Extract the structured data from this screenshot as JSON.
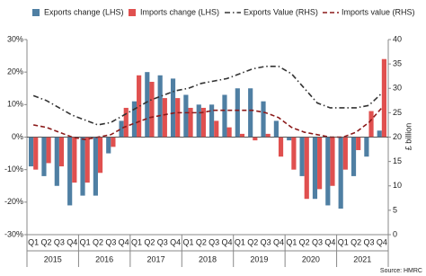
{
  "chart_data": {
    "type": "bar",
    "categories": [
      "Q1",
      "Q2",
      "Q3",
      "Q4",
      "Q1",
      "Q2",
      "Q3",
      "Q4",
      "Q1",
      "Q2",
      "Q3",
      "Q4",
      "Q1",
      "Q2",
      "Q3",
      "Q4",
      "Q1",
      "Q2",
      "Q3",
      "Q4",
      "Q1",
      "Q2",
      "Q3",
      "Q4",
      "Q1",
      "Q2",
      "Q3",
      "Q4"
    ],
    "year_labels": [
      "2015",
      "2016",
      "2017",
      "2018",
      "2019",
      "2020",
      "2021"
    ],
    "series": [
      {
        "name": "Exports change (LHS)",
        "type": "bar",
        "color": "#4f7fa3",
        "values": [
          -9,
          -12,
          -15,
          -21,
          -18,
          -18,
          -5,
          5,
          11,
          20,
          19,
          18,
          13,
          10,
          10,
          13,
          15,
          15,
          11,
          5,
          -1,
          -12,
          -19,
          -21,
          -22,
          -12,
          -6,
          2
        ]
      },
      {
        "name": "Imports change (LHS)",
        "type": "bar",
        "color": "#e0504f",
        "values": [
          -10,
          -8,
          -9,
          -14,
          -14,
          -11,
          -3,
          9,
          19,
          17,
          12,
          12,
          9,
          9,
          5,
          3,
          1,
          -1,
          1,
          -6,
          -10,
          -19,
          -16,
          -15,
          -10,
          -4,
          8,
          24
        ]
      },
      {
        "name": "Exports Value (RHS)",
        "type": "line",
        "axis": "y2",
        "color": "#333333",
        "line_style": "dashdot",
        "values": [
          28.5,
          27.5,
          26,
          24.5,
          23.5,
          22.5,
          23,
          24.5,
          26,
          27.5,
          28.5,
          29.5,
          30,
          31,
          31.5,
          32,
          33,
          34,
          34.5,
          34.5,
          33,
          30,
          27,
          26,
          26,
          26,
          26.5,
          29
        ]
      },
      {
        "name": "Imports value (RHS)",
        "type": "line",
        "axis": "y2",
        "color": "#8b1a1a",
        "line_style": "dashed",
        "values": [
          22.5,
          22,
          21,
          20,
          19.5,
          20,
          20.5,
          22,
          23,
          24,
          24.5,
          25,
          25,
          25,
          25.5,
          25.5,
          25.5,
          25.5,
          25,
          24,
          22,
          21,
          20.5,
          20,
          20,
          21,
          23,
          26
        ]
      }
    ],
    "ylim": [
      -30,
      30
    ],
    "yticks": [
      {
        "value": -30,
        "label": "-30%"
      },
      {
        "value": -20,
        "label": "-20%"
      },
      {
        "value": -10,
        "label": "-10%"
      },
      {
        "value": 0,
        "label": "0%"
      },
      {
        "value": 10,
        "label": "10%"
      },
      {
        "value": 20,
        "label": "20%"
      },
      {
        "value": 30,
        "label": "30%"
      }
    ],
    "y2lim": [
      0,
      40
    ],
    "y2ticks": [
      0,
      5,
      10,
      15,
      20,
      25,
      30,
      35,
      40
    ],
    "y2label": "£ billion",
    "source": "Source: HMRC",
    "legend": "top"
  }
}
